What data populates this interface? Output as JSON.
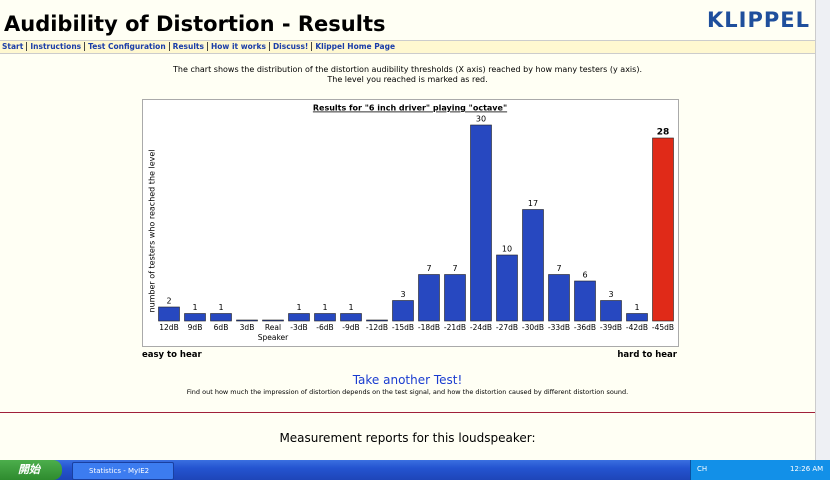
{
  "header": {
    "title": "Audibility of Distortion - Results",
    "logo": "KLIPPEL"
  },
  "nav": [
    "Start",
    "Instructions",
    "Test Configuration",
    "Results",
    "How it works",
    "Discuss!",
    "Klippel Home Page"
  ],
  "intro": [
    "The chart shows the distribution of the distortion audibility thresholds (X axis) reached by how many testers (y axis).",
    "The level you reached is marked as red."
  ],
  "chart_data": {
    "type": "bar",
    "title": "Results for \"6 inch driver\" playing \"octave\"",
    "y_label": "number of testers who reached the level",
    "categories": [
      "12dB",
      "9dB",
      "6dB",
      "3dB",
      "Real Speaker",
      "-3dB",
      "-6dB",
      "-9dB",
      "-12dB",
      "-15dB",
      "-18dB",
      "-21dB",
      "-24dB",
      "-27dB",
      "-30dB",
      "-33dB",
      "-36dB",
      "-39dB",
      "-42dB",
      "-45dB"
    ],
    "values": [
      2,
      1,
      1,
      0,
      0,
      1,
      1,
      1,
      0,
      3,
      7,
      7,
      30,
      10,
      17,
      7,
      6,
      3,
      1,
      28
    ],
    "color": "#2748c0",
    "highlight_color": "#e02a18",
    "highlight_index": 19,
    "ylim": [
      0,
      30
    ],
    "left_note": "easy to hear",
    "right_note": "hard to hear"
  },
  "retest": {
    "link": "Take another Test!",
    "text": "Find out how much the impression of distortion depends on the test signal, and how the distortion caused by different distortion sound."
  },
  "reports": {
    "title": "Measurement reports for this loudspeaker:"
  },
  "taskbar": {
    "start": "開始",
    "task": "Statistics - MyIE2",
    "lang": "CH",
    "clock": "12:26 AM"
  }
}
